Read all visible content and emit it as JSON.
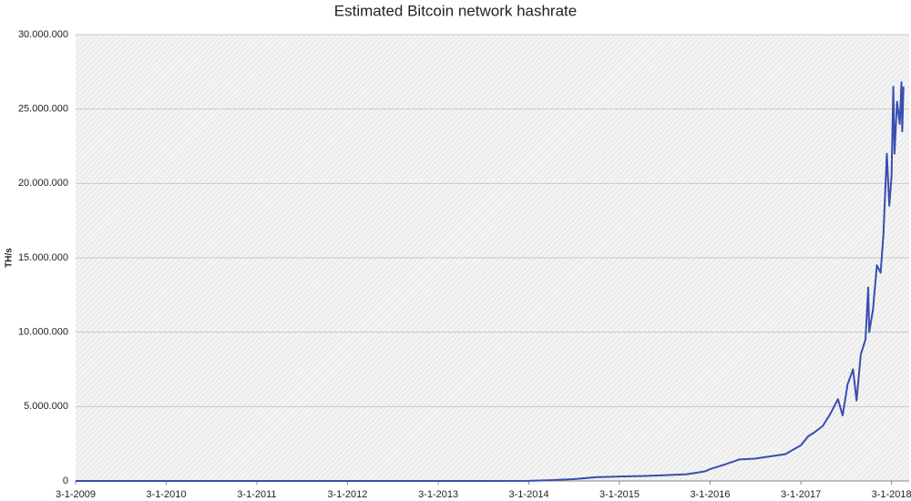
{
  "chart_data": {
    "type": "line",
    "title": "Estimated Bitcoin network hashrate",
    "y_label": "TH/s",
    "color": "#3a4db0",
    "grid": true,
    "x": [
      "2009-01-03",
      "2010-01-03",
      "2011-01-03",
      "2012-01-03",
      "2013-01-03",
      "2013-07-01",
      "2014-01-03",
      "2014-04-01",
      "2014-07-01",
      "2014-10-01",
      "2015-01-03",
      "2015-04-01",
      "2015-07-01",
      "2015-10-01",
      "2015-12-15",
      "2016-01-03",
      "2016-03-01",
      "2016-05-01",
      "2016-07-01",
      "2016-09-01",
      "2016-11-01",
      "2017-01-03",
      "2017-02-01",
      "2017-03-01",
      "2017-04-01",
      "2017-05-01",
      "2017-06-01",
      "2017-06-20",
      "2017-07-10",
      "2017-08-01",
      "2017-08-15",
      "2017-09-01",
      "2017-09-20",
      "2017-10-01",
      "2017-10-05",
      "2017-10-20",
      "2017-11-05",
      "2017-11-20",
      "2017-12-01",
      "2017-12-15",
      "2017-12-25",
      "2018-01-03",
      "2018-01-10",
      "2018-01-15",
      "2018-01-25",
      "2018-02-05",
      "2018-02-12",
      "2018-02-15",
      "2018-02-20"
    ],
    "values": [
      0,
      0,
      0,
      10,
      20,
      300,
      10000,
      50000,
      120000,
      250000,
      300000,
      330000,
      380000,
      450000,
      650000,
      800000,
      1100000,
      1450000,
      1500000,
      1650000,
      1800000,
      2400000,
      3000000,
      3300000,
      3700000,
      4500000,
      5500000,
      4400000,
      6500000,
      7500000,
      5400000,
      8500000,
      9500000,
      13000000,
      10000000,
      11500000,
      14500000,
      14000000,
      16500000,
      22000000,
      18500000,
      20500000,
      26500000,
      22000000,
      25500000,
      24000000,
      26800000,
      23500000,
      26500000
    ],
    "xlim": [
      "2009-01-03",
      "2018-03-15"
    ],
    "xticks": [
      {
        "value": "2009-01-03",
        "label": "3-1-2009"
      },
      {
        "value": "2010-01-03",
        "label": "3-1-2010"
      },
      {
        "value": "2011-01-03",
        "label": "3-1-2011"
      },
      {
        "value": "2012-01-03",
        "label": "3-1-2012"
      },
      {
        "value": "2013-01-03",
        "label": "3-1-2013"
      },
      {
        "value": "2014-01-03",
        "label": "3-1-2014"
      },
      {
        "value": "2015-01-03",
        "label": "3-1-2015"
      },
      {
        "value": "2016-01-03",
        "label": "3-1-2016"
      },
      {
        "value": "2017-01-03",
        "label": "3-1-2017"
      },
      {
        "value": "2018-01-03",
        "label": "3-1-2018"
      }
    ],
    "ylim": [
      0,
      30000000
    ],
    "yticks": [
      0,
      {
        "value": 5000000,
        "label": "5.000.000"
      },
      {
        "value": 10000000,
        "label": "10.000.000"
      },
      {
        "value": 15000000,
        "label": "15.000.000"
      },
      {
        "value": 20000000,
        "label": "20.000.000"
      },
      {
        "value": 25000000,
        "label": "25.000.000"
      },
      {
        "value": 30000000,
        "label": "30.000.000"
      }
    ]
  }
}
